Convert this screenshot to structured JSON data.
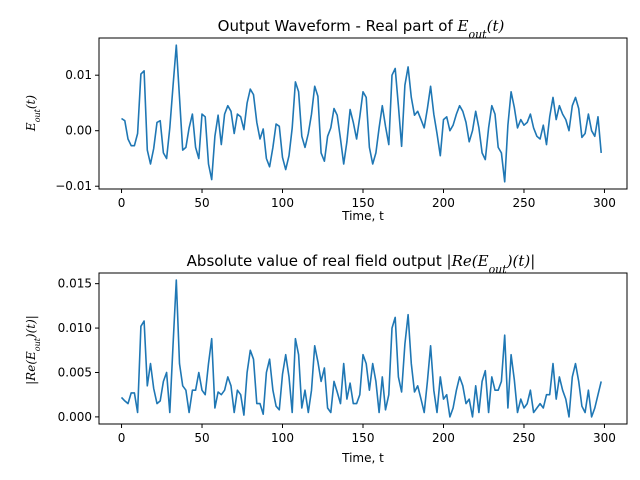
{
  "chart_data": [
    {
      "type": "line",
      "title_text": "Output Waveform - Real part of ",
      "title_math": "E_out(t)",
      "xlabel": "Time, t",
      "ylabel_math": "E_out(t)",
      "xlim": [
        -14,
        314
      ],
      "ylim": [
        -0.0105,
        0.0167
      ],
      "xticks": [
        0,
        50,
        100,
        150,
        200,
        250,
        300
      ],
      "yticks": [
        -0.01,
        0.0,
        0.01
      ],
      "ytick_labels": [
        "−0.01",
        "0.00",
        "0.01"
      ],
      "color": "#1f77b4",
      "x": [
        0,
        2,
        4,
        6,
        8,
        10,
        12,
        14,
        16,
        18,
        20,
        22,
        24,
        26,
        28,
        30,
        32,
        34,
        36,
        38,
        40,
        42,
        44,
        46,
        48,
        50,
        52,
        54,
        56,
        58,
        60,
        62,
        64,
        66,
        68,
        70,
        72,
        74,
        76,
        78,
        80,
        82,
        84,
        86,
        88,
        90,
        92,
        94,
        96,
        98,
        100,
        102,
        104,
        106,
        108,
        110,
        112,
        114,
        116,
        118,
        120,
        122,
        124,
        126,
        128,
        130,
        132,
        134,
        136,
        138,
        140,
        142,
        144,
        146,
        148,
        150,
        152,
        154,
        156,
        158,
        160,
        162,
        164,
        166,
        168,
        170,
        172,
        174,
        176,
        178,
        180,
        182,
        184,
        186,
        188,
        190,
        192,
        194,
        196,
        198,
        200,
        202,
        204,
        206,
        208,
        210,
        212,
        214,
        216,
        218,
        220,
        222,
        224,
        226,
        228,
        230,
        232,
        234,
        236,
        238,
        240,
        242,
        244,
        246,
        248,
        250,
        252,
        254,
        256,
        258,
        260,
        262,
        264,
        266,
        268,
        270,
        272,
        274,
        276,
        278,
        280,
        282,
        284,
        286,
        288,
        290,
        292,
        294,
        296,
        298
      ],
      "y": [
        0.0022,
        0.0018,
        -0.0015,
        -0.0027,
        -0.0027,
        -0.0005,
        0.0102,
        0.0108,
        -0.0035,
        -0.006,
        -0.0032,
        0.0015,
        0.0018,
        -0.004,
        -0.005,
        0.0005,
        0.008,
        0.0154,
        0.006,
        -0.0035,
        -0.003,
        0.0005,
        0.003,
        -0.003,
        -0.005,
        0.003,
        0.0025,
        -0.006,
        -0.0088,
        -0.001,
        0.0028,
        -0.0025,
        0.003,
        0.0045,
        0.0035,
        -0.0005,
        0.003,
        0.0025,
        0.0002,
        0.005,
        0.0075,
        0.0065,
        0.0015,
        -0.0015,
        0.0003,
        -0.005,
        -0.0065,
        -0.003,
        0.0012,
        0.0008,
        -0.0048,
        -0.007,
        -0.0045,
        0.0005,
        0.0088,
        0.007,
        -0.001,
        -0.003,
        -0.0005,
        0.003,
        0.008,
        0.0062,
        -0.004,
        -0.0055,
        -0.001,
        0.0005,
        0.004,
        0.0028,
        -0.0015,
        -0.006,
        -0.002,
        0.0038,
        0.0015,
        -0.0015,
        0.0025,
        0.007,
        0.006,
        -0.003,
        -0.006,
        -0.004,
        0.0005,
        0.0045,
        0.0008,
        -0.0025,
        0.01,
        0.0112,
        0.0045,
        -0.0028,
        0.0082,
        0.0115,
        0.006,
        0.0028,
        0.0035,
        0.002,
        0.0005,
        0.004,
        0.008,
        0.003,
        -0.0005,
        -0.0045,
        0.002,
        0.0025,
        0.0,
        0.001,
        0.003,
        0.0045,
        0.0035,
        0.0015,
        -0.002,
        0.0,
        0.0035,
        0.0005,
        -0.004,
        -0.0052,
        0.0005,
        0.0045,
        0.003,
        -0.003,
        -0.004,
        -0.0092,
        0.001,
        0.007,
        0.0042,
        0.0005,
        0.002,
        0.001,
        0.0015,
        0.003,
        0.0005,
        -0.001,
        -0.0015,
        0.001,
        -0.0025,
        0.0025,
        0.006,
        0.002,
        0.0045,
        0.003,
        0.002,
        0.0,
        0.0045,
        0.006,
        0.004,
        -0.0012,
        -0.0005,
        0.003,
        0.0,
        -0.001,
        0.0025,
        -0.004
      ]
    },
    {
      "type": "line",
      "title_text": "Absolute value of real field output ",
      "title_math": "|Re(E_out)(t)|",
      "xlabel": "Time, t",
      "ylabel_math": "|Re(E_out)(t)|",
      "xlim": [
        -14,
        314
      ],
      "ylim": [
        -0.0008,
        0.0162
      ],
      "xticks": [
        0,
        50,
        100,
        150,
        200,
        250,
        300
      ],
      "yticks": [
        0.0,
        0.005,
        0.01,
        0.015
      ],
      "ytick_labels": [
        "0.000",
        "0.005",
        "0.010",
        "0.015"
      ],
      "color": "#1f77b4",
      "derived_from": "abs of series 0"
    }
  ]
}
